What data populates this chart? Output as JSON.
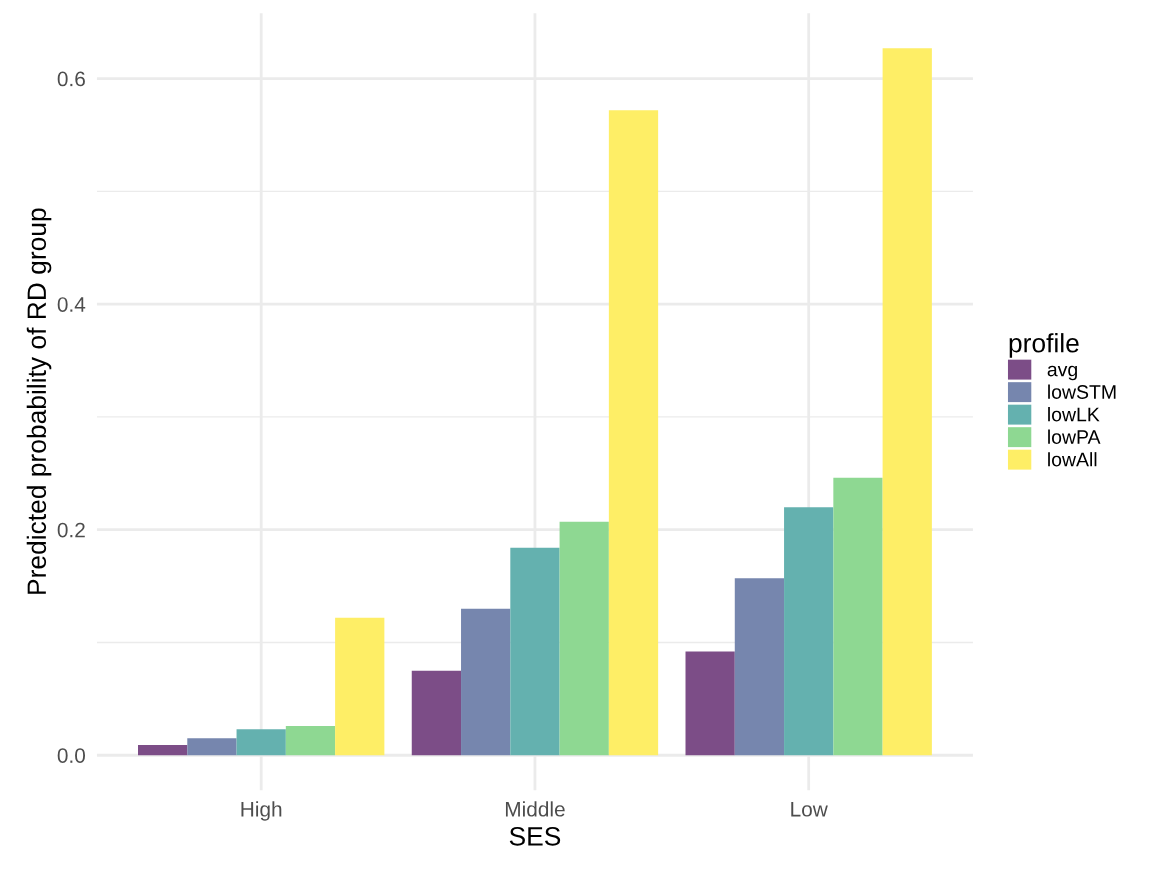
{
  "chart_data": {
    "type": "bar",
    "xlabel": "SES",
    "ylabel": "Predicted probability of RD group",
    "legend_title": "profile",
    "categories": [
      "High",
      "Middle",
      "Low"
    ],
    "series": [
      {
        "name": "avg",
        "color": "#7c4d87",
        "values": [
          0.009,
          0.075,
          0.092
        ]
      },
      {
        "name": "lowSTM",
        "color": "#7686ae",
        "values": [
          0.015,
          0.13,
          0.157
        ]
      },
      {
        "name": "lowLK",
        "color": "#64b1af",
        "values": [
          0.023,
          0.184,
          0.22
        ]
      },
      {
        "name": "lowPA",
        "color": "#8ed892",
        "values": [
          0.026,
          0.207,
          0.246
        ]
      },
      {
        "name": "lowAll",
        "color": "#feee66",
        "values": [
          0.122,
          0.572,
          0.627
        ]
      }
    ],
    "ylim": [
      -0.031,
      0.658
    ],
    "yticks": [
      {
        "value": 0.0,
        "label": "0.0"
      },
      {
        "value": 0.1,
        "label": null
      },
      {
        "value": 0.2,
        "label": "0.2"
      },
      {
        "value": 0.3,
        "label": null
      },
      {
        "value": 0.4,
        "label": "0.4"
      },
      {
        "value": 0.5,
        "label": null
      },
      {
        "value": 0.6,
        "label": "0.6"
      }
    ],
    "grid": true,
    "legend": "right"
  }
}
